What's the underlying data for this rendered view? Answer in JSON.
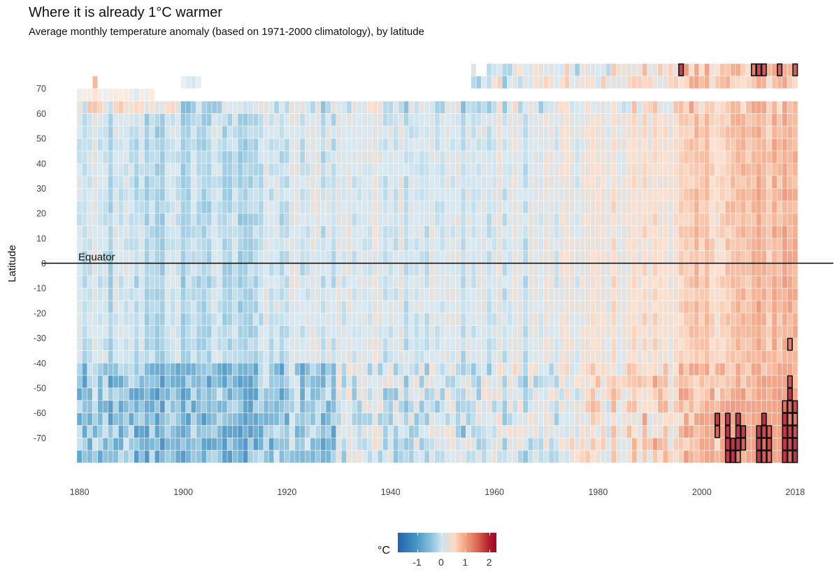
{
  "title": "Where it is already 1°C warmer",
  "subtitle": "Average monthly temperature anomaly (based on 1971-2000 climatology), by latitude",
  "chart_data": {
    "type": "heatmap",
    "title": "Where it is already 1°C warmer",
    "subtitle": "Average monthly temperature anomaly (based on 1971-2000 climatology), by latitude",
    "xlabel": "",
    "ylabel": "Latitude",
    "x_range": [
      1880,
      2018
    ],
    "y_range": [
      -80,
      80
    ],
    "cell_width_years": 1,
    "cell_height_degrees": 5,
    "x_ticks": [
      "1880",
      "1900",
      "1920",
      "1940",
      "1960",
      "1980",
      "2000",
      "2018"
    ],
    "y_ticks": [
      "70",
      "60",
      "50",
      "40",
      "30",
      "20",
      "10",
      "0",
      "-10",
      "-20",
      "-30",
      "-40",
      "-50",
      "-60",
      "-70"
    ],
    "annotation": {
      "label": "Equator",
      "latitude": 0
    },
    "highlight_threshold_c": 1,
    "legend": {
      "title": "°C",
      "ticks": [
        "-1",
        "0",
        "1",
        "2"
      ],
      "range": [
        -1.8,
        2.3
      ],
      "colors": [
        "#2166ac",
        "#4393c3",
        "#92c5de",
        "#d1e5f0",
        "#e0dcd8",
        "#fddbc7",
        "#f4a582",
        "#d6604d",
        "#b2182b",
        "#9e0a25"
      ],
      "placement": "bottom"
    },
    "band_start_year": {
      "75": 1956,
      "70": 1883,
      "65": 1880,
      "60": 1880
    },
    "band_missing_years": {
      "75": [
        1957,
        1958
      ],
      "70": [
        1884,
        1885,
        1886,
        1887,
        1888,
        1889,
        1890,
        1891,
        1892,
        1893,
        1894,
        1895,
        1896,
        1897,
        1898,
        1899,
        1904,
        1905,
        1906,
        1907,
        1908,
        1909,
        1910,
        1911,
        1912,
        1913,
        1914,
        1915,
        1916,
        1917,
        1918,
        1919,
        1920,
        1921,
        1922,
        1923,
        1924,
        1925,
        1926,
        1927,
        1928,
        1929,
        1930,
        1931,
        1932,
        1933,
        1934,
        1935,
        1936,
        1937,
        1938,
        1939,
        1940,
        1941,
        1942,
        1943,
        1944,
        1945,
        1946,
        1947,
        1948,
        1949,
        1950,
        1951,
        1952,
        1953,
        1954,
        1955
      ],
      "65": [
        1895,
        1896,
        1897,
        1898,
        1899,
        1900,
        1901,
        1902,
        1903,
        1904,
        1905,
        1906,
        1907,
        1908,
        1909,
        1910,
        1911,
        1912,
        1913,
        1914,
        1915,
        1916,
        1917,
        1918,
        1919,
        1920,
        1921,
        1922,
        1923,
        1924,
        1925,
        1926,
        1927,
        1928,
        1929,
        1930,
        1931,
        1932,
        1933,
        1934,
        1935,
        1936,
        1937,
        1938,
        1939,
        1940,
        1941,
        1942,
        1943,
        1944,
        1945,
        1946,
        1947,
        1948,
        1949,
        1950,
        1951,
        1952,
        1953,
        1954,
        1955,
        1956,
        1957,
        1958,
        1959,
        1960,
        1961,
        1962,
        1963,
        1964,
        1965,
        1966,
        1967,
        1968,
        1969,
        1970,
        1971,
        1972,
        1973,
        1974,
        1975,
        1976,
        1977,
        1978,
        1979,
        1980,
        1981,
        1982,
        1983,
        1984,
        1985,
        1986,
        1987,
        1988,
        1989,
        1990,
        1991,
        1992,
        1993,
        1994,
        1995,
        1996,
        1997,
        1998,
        1999,
        2000,
        2001,
        2002,
        2003,
        2004,
        2005,
        2006,
        2007,
        2008,
        2009,
        2010,
        2011,
        2012,
        2013,
        2014,
        2015,
        2016,
        2017,
        2018
      ]
    },
    "band_sparse_years": {
      "70": [
        1900,
        1901,
        1902,
        1903,
        1919,
        1923,
        1925,
        1927,
        1929,
        1930,
        1931,
        1932,
        1933,
        1934,
        1935,
        1936,
        1937,
        1938,
        1939,
        1940,
        1941,
        1942,
        1943,
        1944,
        1945,
        1946,
        1947,
        1948,
        1949,
        1950,
        1951,
        1952,
        1953,
        1954,
        1955
      ],
      "65": [
        1880,
        1881,
        1882,
        1883,
        1884,
        1885,
        1886,
        1887,
        1888,
        1889,
        1890,
        1891,
        1892,
        1893,
        1894,
        1938,
        1940
      ]
    },
    "decade_trend_c": {
      "1880": -0.35,
      "1890": -0.4,
      "1900": -0.45,
      "1910": -0.45,
      "1920": -0.3,
      "1930": -0.2,
      "1940": -0.1,
      "1950": -0.25,
      "1960": -0.2,
      "1970": -0.15,
      "1980": 0.05,
      "1990": 0.2,
      "2000": 0.45,
      "2010": 0.65,
      "2018": 0.85
    },
    "highlighted_cells": [
      {
        "year": 1996,
        "lat": 75
      },
      {
        "year": 2010,
        "lat": 75
      },
      {
        "year": 2011,
        "lat": 75
      },
      {
        "year": 2012,
        "lat": 75
      },
      {
        "year": 2015,
        "lat": 75
      },
      {
        "year": 2018,
        "lat": 75
      },
      {
        "year": 2017,
        "lat": -35
      },
      {
        "year": 2017,
        "lat": -50
      },
      {
        "year": 2017,
        "lat": -55
      },
      {
        "year": 2016,
        "lat": -60
      },
      {
        "year": 2017,
        "lat": -60
      },
      {
        "year": 2018,
        "lat": -60
      },
      {
        "year": 2003,
        "lat": -65
      },
      {
        "year": 2005,
        "lat": -65
      },
      {
        "year": 2007,
        "lat": -65
      },
      {
        "year": 2012,
        "lat": -65
      },
      {
        "year": 2016,
        "lat": -65
      },
      {
        "year": 2017,
        "lat": -65
      },
      {
        "year": 2018,
        "lat": -65
      },
      {
        "year": 2003,
        "lat": -70
      },
      {
        "year": 2005,
        "lat": -70
      },
      {
        "year": 2007,
        "lat": -70
      },
      {
        "year": 2008,
        "lat": -70
      },
      {
        "year": 2011,
        "lat": -70
      },
      {
        "year": 2012,
        "lat": -70
      },
      {
        "year": 2013,
        "lat": -70
      },
      {
        "year": 2016,
        "lat": -70
      },
      {
        "year": 2017,
        "lat": -70
      },
      {
        "year": 2018,
        "lat": -70
      },
      {
        "year": 2005,
        "lat": -75
      },
      {
        "year": 2006,
        "lat": -75
      },
      {
        "year": 2007,
        "lat": -75
      },
      {
        "year": 2008,
        "lat": -75
      },
      {
        "year": 2011,
        "lat": -75
      },
      {
        "year": 2012,
        "lat": -75
      },
      {
        "year": 2013,
        "lat": -75
      },
      {
        "year": 2016,
        "lat": -75
      },
      {
        "year": 2017,
        "lat": -75
      },
      {
        "year": 2018,
        "lat": -75
      },
      {
        "year": 2005,
        "lat": -80
      },
      {
        "year": 2006,
        "lat": -80
      },
      {
        "year": 2007,
        "lat": -80
      },
      {
        "year": 2011,
        "lat": -80
      },
      {
        "year": 2012,
        "lat": -80
      },
      {
        "year": 2013,
        "lat": -80
      },
      {
        "year": 2016,
        "lat": -80
      },
      {
        "year": 2017,
        "lat": -80
      },
      {
        "year": 2018,
        "lat": -80
      }
    ]
  }
}
